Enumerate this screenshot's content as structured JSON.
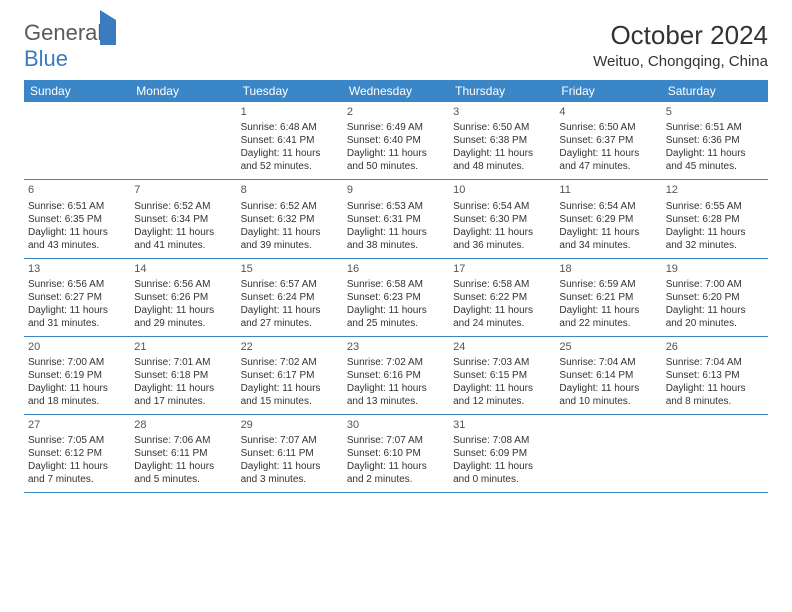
{
  "logo": {
    "text1": "General",
    "text2": "Blue"
  },
  "title": "October 2024",
  "location": "Weituo, Chongqing, China",
  "colors": {
    "header_bg": "#3b86c7",
    "header_text": "#ffffff",
    "border": "#3b86c7",
    "text": "#333333",
    "logo_gray": "#5a5a5a",
    "logo_blue": "#3b7bbf"
  },
  "weekdays": [
    "Sunday",
    "Monday",
    "Tuesday",
    "Wednesday",
    "Thursday",
    "Friday",
    "Saturday"
  ],
  "weeks": [
    [
      {
        "day": "",
        "sunrise": "",
        "sunset": "",
        "daylight": ""
      },
      {
        "day": "",
        "sunrise": "",
        "sunset": "",
        "daylight": ""
      },
      {
        "day": "1",
        "sunrise": "Sunrise: 6:48 AM",
        "sunset": "Sunset: 6:41 PM",
        "daylight": "Daylight: 11 hours and 52 minutes."
      },
      {
        "day": "2",
        "sunrise": "Sunrise: 6:49 AM",
        "sunset": "Sunset: 6:40 PM",
        "daylight": "Daylight: 11 hours and 50 minutes."
      },
      {
        "day": "3",
        "sunrise": "Sunrise: 6:50 AM",
        "sunset": "Sunset: 6:38 PM",
        "daylight": "Daylight: 11 hours and 48 minutes."
      },
      {
        "day": "4",
        "sunrise": "Sunrise: 6:50 AM",
        "sunset": "Sunset: 6:37 PM",
        "daylight": "Daylight: 11 hours and 47 minutes."
      },
      {
        "day": "5",
        "sunrise": "Sunrise: 6:51 AM",
        "sunset": "Sunset: 6:36 PM",
        "daylight": "Daylight: 11 hours and 45 minutes."
      }
    ],
    [
      {
        "day": "6",
        "sunrise": "Sunrise: 6:51 AM",
        "sunset": "Sunset: 6:35 PM",
        "daylight": "Daylight: 11 hours and 43 minutes."
      },
      {
        "day": "7",
        "sunrise": "Sunrise: 6:52 AM",
        "sunset": "Sunset: 6:34 PM",
        "daylight": "Daylight: 11 hours and 41 minutes."
      },
      {
        "day": "8",
        "sunrise": "Sunrise: 6:52 AM",
        "sunset": "Sunset: 6:32 PM",
        "daylight": "Daylight: 11 hours and 39 minutes."
      },
      {
        "day": "9",
        "sunrise": "Sunrise: 6:53 AM",
        "sunset": "Sunset: 6:31 PM",
        "daylight": "Daylight: 11 hours and 38 minutes."
      },
      {
        "day": "10",
        "sunrise": "Sunrise: 6:54 AM",
        "sunset": "Sunset: 6:30 PM",
        "daylight": "Daylight: 11 hours and 36 minutes."
      },
      {
        "day": "11",
        "sunrise": "Sunrise: 6:54 AM",
        "sunset": "Sunset: 6:29 PM",
        "daylight": "Daylight: 11 hours and 34 minutes."
      },
      {
        "day": "12",
        "sunrise": "Sunrise: 6:55 AM",
        "sunset": "Sunset: 6:28 PM",
        "daylight": "Daylight: 11 hours and 32 minutes."
      }
    ],
    [
      {
        "day": "13",
        "sunrise": "Sunrise: 6:56 AM",
        "sunset": "Sunset: 6:27 PM",
        "daylight": "Daylight: 11 hours and 31 minutes."
      },
      {
        "day": "14",
        "sunrise": "Sunrise: 6:56 AM",
        "sunset": "Sunset: 6:26 PM",
        "daylight": "Daylight: 11 hours and 29 minutes."
      },
      {
        "day": "15",
        "sunrise": "Sunrise: 6:57 AM",
        "sunset": "Sunset: 6:24 PM",
        "daylight": "Daylight: 11 hours and 27 minutes."
      },
      {
        "day": "16",
        "sunrise": "Sunrise: 6:58 AM",
        "sunset": "Sunset: 6:23 PM",
        "daylight": "Daylight: 11 hours and 25 minutes."
      },
      {
        "day": "17",
        "sunrise": "Sunrise: 6:58 AM",
        "sunset": "Sunset: 6:22 PM",
        "daylight": "Daylight: 11 hours and 24 minutes."
      },
      {
        "day": "18",
        "sunrise": "Sunrise: 6:59 AM",
        "sunset": "Sunset: 6:21 PM",
        "daylight": "Daylight: 11 hours and 22 minutes."
      },
      {
        "day": "19",
        "sunrise": "Sunrise: 7:00 AM",
        "sunset": "Sunset: 6:20 PM",
        "daylight": "Daylight: 11 hours and 20 minutes."
      }
    ],
    [
      {
        "day": "20",
        "sunrise": "Sunrise: 7:00 AM",
        "sunset": "Sunset: 6:19 PM",
        "daylight": "Daylight: 11 hours and 18 minutes."
      },
      {
        "day": "21",
        "sunrise": "Sunrise: 7:01 AM",
        "sunset": "Sunset: 6:18 PM",
        "daylight": "Daylight: 11 hours and 17 minutes."
      },
      {
        "day": "22",
        "sunrise": "Sunrise: 7:02 AM",
        "sunset": "Sunset: 6:17 PM",
        "daylight": "Daylight: 11 hours and 15 minutes."
      },
      {
        "day": "23",
        "sunrise": "Sunrise: 7:02 AM",
        "sunset": "Sunset: 6:16 PM",
        "daylight": "Daylight: 11 hours and 13 minutes."
      },
      {
        "day": "24",
        "sunrise": "Sunrise: 7:03 AM",
        "sunset": "Sunset: 6:15 PM",
        "daylight": "Daylight: 11 hours and 12 minutes."
      },
      {
        "day": "25",
        "sunrise": "Sunrise: 7:04 AM",
        "sunset": "Sunset: 6:14 PM",
        "daylight": "Daylight: 11 hours and 10 minutes."
      },
      {
        "day": "26",
        "sunrise": "Sunrise: 7:04 AM",
        "sunset": "Sunset: 6:13 PM",
        "daylight": "Daylight: 11 hours and 8 minutes."
      }
    ],
    [
      {
        "day": "27",
        "sunrise": "Sunrise: 7:05 AM",
        "sunset": "Sunset: 6:12 PM",
        "daylight": "Daylight: 11 hours and 7 minutes."
      },
      {
        "day": "28",
        "sunrise": "Sunrise: 7:06 AM",
        "sunset": "Sunset: 6:11 PM",
        "daylight": "Daylight: 11 hours and 5 minutes."
      },
      {
        "day": "29",
        "sunrise": "Sunrise: 7:07 AM",
        "sunset": "Sunset: 6:11 PM",
        "daylight": "Daylight: 11 hours and 3 minutes."
      },
      {
        "day": "30",
        "sunrise": "Sunrise: 7:07 AM",
        "sunset": "Sunset: 6:10 PM",
        "daylight": "Daylight: 11 hours and 2 minutes."
      },
      {
        "day": "31",
        "sunrise": "Sunrise: 7:08 AM",
        "sunset": "Sunset: 6:09 PM",
        "daylight": "Daylight: 11 hours and 0 minutes."
      },
      {
        "day": "",
        "sunrise": "",
        "sunset": "",
        "daylight": ""
      },
      {
        "day": "",
        "sunrise": "",
        "sunset": "",
        "daylight": ""
      }
    ]
  ]
}
